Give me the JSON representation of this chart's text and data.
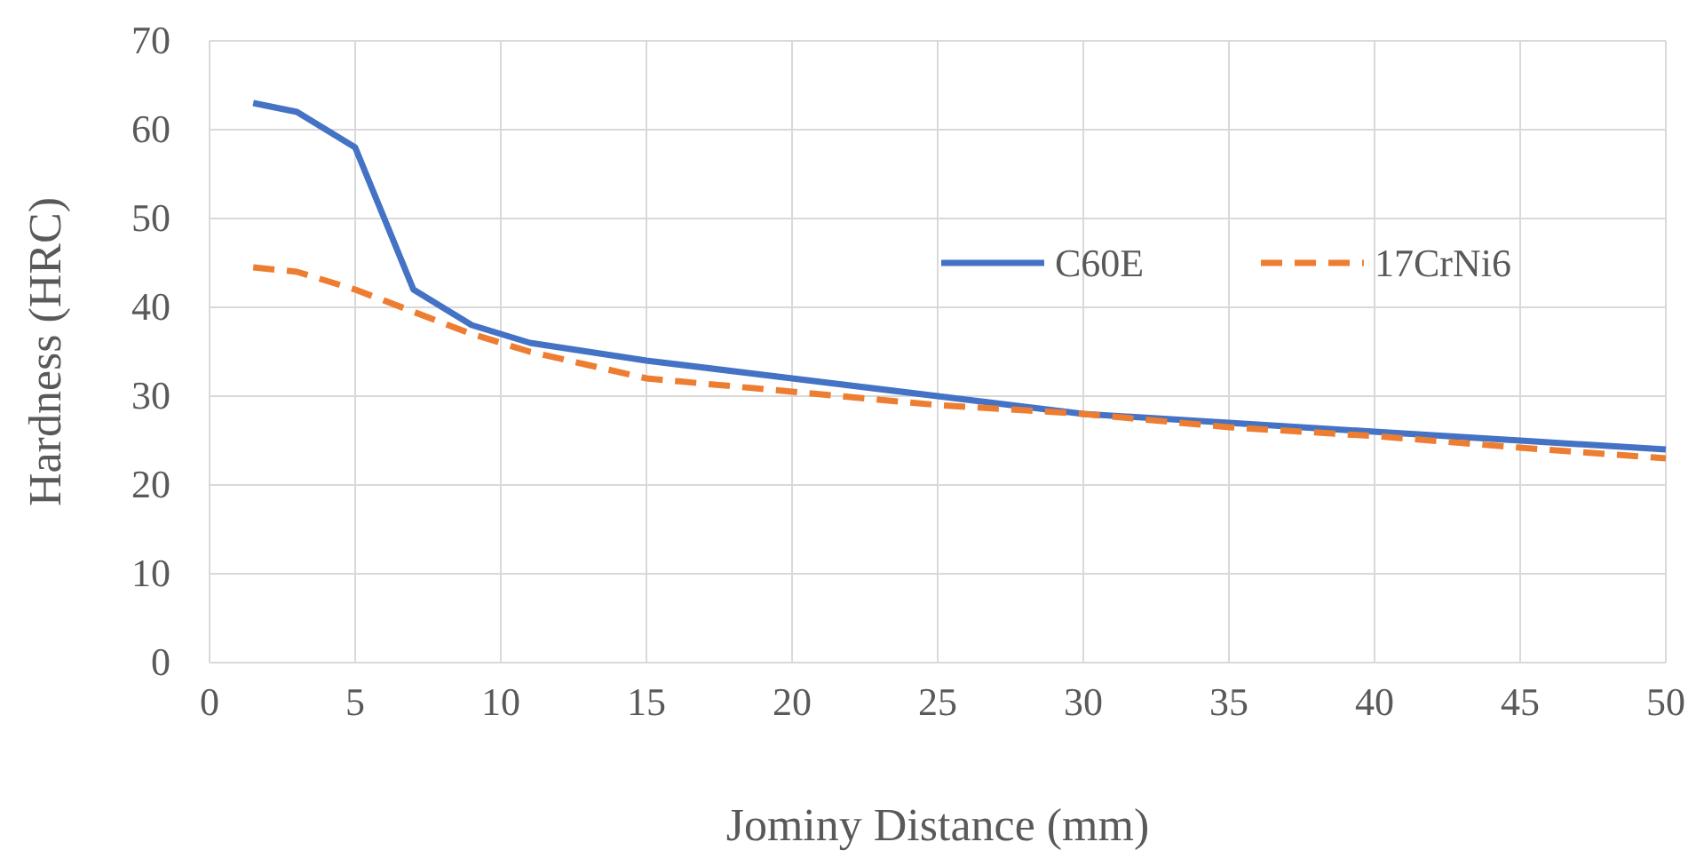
{
  "chart_data": {
    "type": "line",
    "xlabel": "Jominy Distance (mm)",
    "ylabel": "Hardness (HRC)",
    "x": [
      1.5,
      3,
      5,
      7,
      9,
      11,
      13,
      15,
      20,
      25,
      30,
      35,
      40,
      45,
      50
    ],
    "series": [
      {
        "name": "C60E",
        "color": "#4472c4",
        "line_style": "solid",
        "values": [
          63,
          62,
          58,
          42,
          38,
          36,
          35,
          34,
          32,
          30,
          28,
          27,
          26,
          25,
          24
        ]
      },
      {
        "name": "17CrNi6",
        "color": "#ed7d31",
        "line_style": "dashed",
        "values": [
          44.5,
          44,
          42,
          39.5,
          37,
          35,
          33.5,
          32,
          30.5,
          29,
          28,
          26.5,
          25.5,
          24.2,
          23
        ]
      }
    ],
    "xlim": [
      0,
      50
    ],
    "xticks": [
      0,
      5,
      10,
      15,
      20,
      25,
      30,
      35,
      40,
      45,
      50
    ],
    "ylim": [
      0,
      70
    ],
    "yticks": [
      0,
      10,
      20,
      30,
      40,
      50,
      60,
      70
    ],
    "grid": true,
    "legend": "right",
    "marker": "none"
  }
}
